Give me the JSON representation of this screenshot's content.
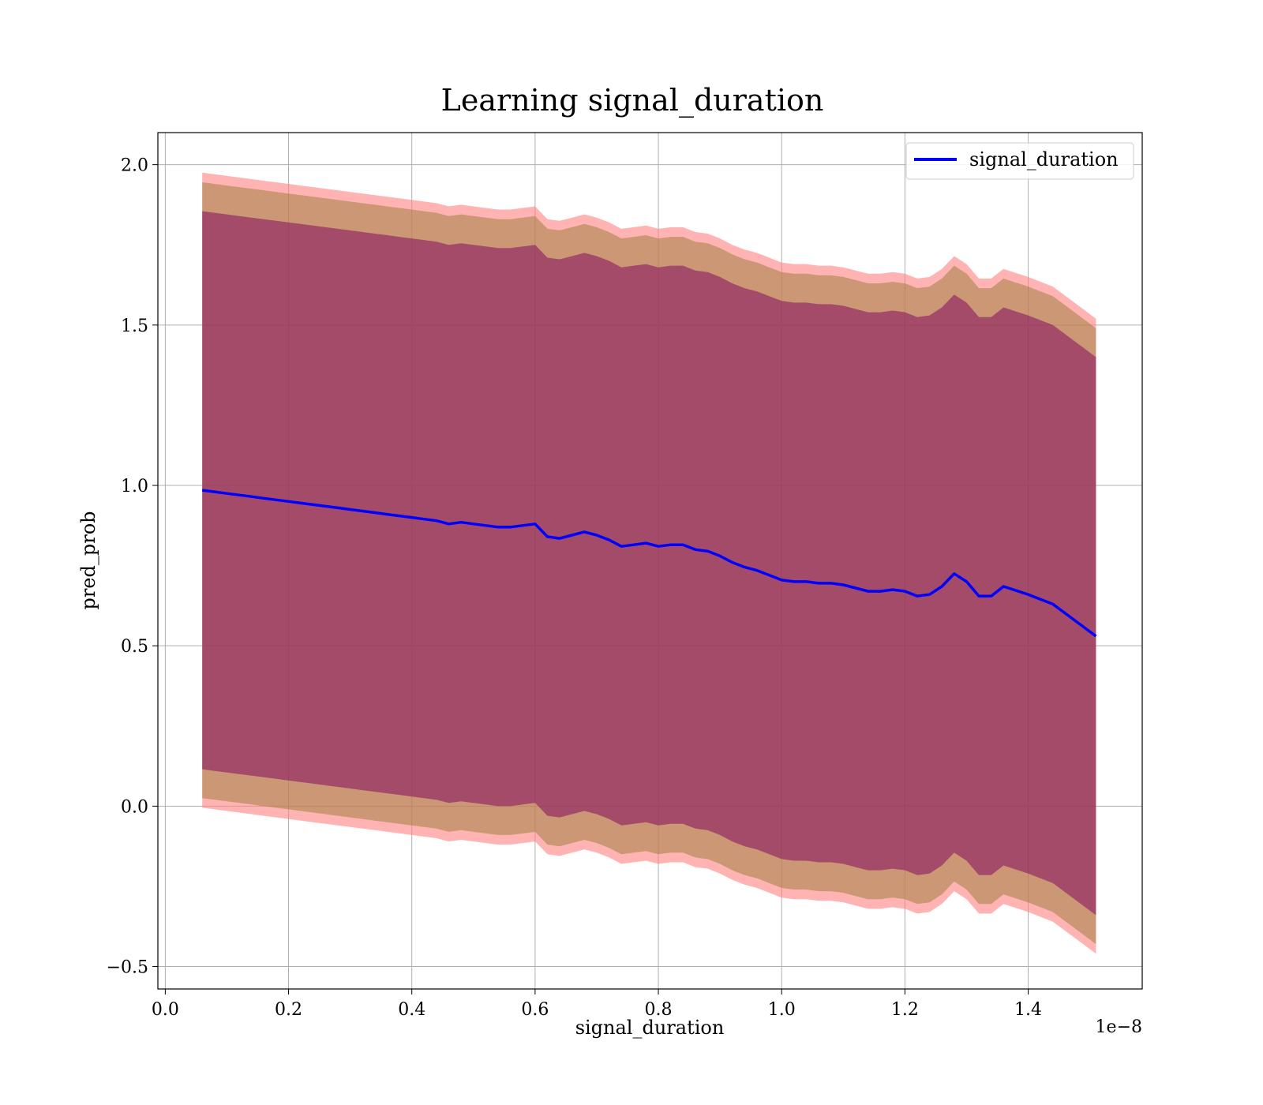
{
  "chart_data": {
    "type": "line",
    "title": "Learning signal_duration",
    "xlabel": "signal_duration",
    "ylabel": "pred_prob",
    "x_offset_label": "1e−8",
    "xlim": [
      -0.012,
      1.585
    ],
    "ylim": [
      -0.57,
      2.1
    ],
    "xticks": [
      0.0,
      0.2,
      0.4,
      0.6,
      0.8,
      1.0,
      1.2,
      1.4
    ],
    "xtick_labels": [
      "0.0",
      "0.2",
      "0.4",
      "0.6",
      "0.8",
      "1.0",
      "1.2",
      "1.4"
    ],
    "yticks": [
      -0.5,
      0.0,
      0.5,
      1.0,
      1.5,
      2.0
    ],
    "ytick_labels": [
      "−0.5",
      "0.0",
      "0.5",
      "1.0",
      "1.5",
      "2.0"
    ],
    "grid": true,
    "legend": {
      "position": "top-right",
      "entries": [
        "signal_duration"
      ]
    },
    "series": [
      {
        "name": "signal_duration",
        "color": "#0000ff",
        "x": [
          0.06,
          0.08,
          0.1,
          0.12,
          0.14,
          0.16,
          0.18,
          0.2,
          0.22,
          0.24,
          0.26,
          0.28,
          0.3,
          0.32,
          0.34,
          0.36,
          0.38,
          0.4,
          0.42,
          0.44,
          0.46,
          0.48,
          0.5,
          0.52,
          0.54,
          0.56,
          0.58,
          0.6,
          0.62,
          0.64,
          0.66,
          0.68,
          0.7,
          0.72,
          0.74,
          0.76,
          0.78,
          0.8,
          0.82,
          0.84,
          0.86,
          0.88,
          0.9,
          0.92,
          0.94,
          0.96,
          0.98,
          1.0,
          1.02,
          1.04,
          1.06,
          1.08,
          1.1,
          1.12,
          1.14,
          1.16,
          1.18,
          1.2,
          1.22,
          1.24,
          1.26,
          1.28,
          1.3,
          1.32,
          1.34,
          1.36,
          1.4,
          1.44,
          1.51
        ],
        "y": [
          0.985,
          0.98,
          0.975,
          0.97,
          0.965,
          0.96,
          0.955,
          0.95,
          0.945,
          0.94,
          0.935,
          0.93,
          0.925,
          0.92,
          0.915,
          0.91,
          0.905,
          0.9,
          0.895,
          0.89,
          0.88,
          0.885,
          0.88,
          0.875,
          0.87,
          0.87,
          0.875,
          0.88,
          0.84,
          0.835,
          0.845,
          0.855,
          0.845,
          0.83,
          0.81,
          0.815,
          0.82,
          0.81,
          0.815,
          0.815,
          0.8,
          0.795,
          0.78,
          0.76,
          0.745,
          0.735,
          0.72,
          0.705,
          0.7,
          0.7,
          0.695,
          0.695,
          0.69,
          0.68,
          0.67,
          0.67,
          0.675,
          0.67,
          0.655,
          0.66,
          0.685,
          0.725,
          0.7,
          0.655,
          0.655,
          0.685,
          0.66,
          0.63,
          0.53
        ]
      }
    ],
    "bands": [
      {
        "color": "#ff8080",
        "opacity": 0.6,
        "lower": [
          -0.005,
          -0.01,
          -0.015,
          -0.02,
          -0.025,
          -0.03,
          -0.035,
          -0.04,
          -0.045,
          -0.05,
          -0.055,
          -0.06,
          -0.065,
          -0.07,
          -0.075,
          -0.08,
          -0.085,
          -0.09,
          -0.095,
          -0.1,
          -0.11,
          -0.105,
          -0.11,
          -0.115,
          -0.12,
          -0.12,
          -0.115,
          -0.11,
          -0.15,
          -0.155,
          -0.145,
          -0.135,
          -0.145,
          -0.16,
          -0.18,
          -0.175,
          -0.17,
          -0.18,
          -0.175,
          -0.175,
          -0.19,
          -0.195,
          -0.21,
          -0.23,
          -0.245,
          -0.255,
          -0.27,
          -0.285,
          -0.29,
          -0.29,
          -0.295,
          -0.295,
          -0.3,
          -0.31,
          -0.32,
          -0.32,
          -0.315,
          -0.32,
          -0.335,
          -0.33,
          -0.305,
          -0.265,
          -0.29,
          -0.335,
          -0.335,
          -0.305,
          -0.33,
          -0.36,
          -0.46
        ],
        "upper": [
          1.975,
          1.97,
          1.965,
          1.96,
          1.955,
          1.95,
          1.945,
          1.94,
          1.935,
          1.93,
          1.925,
          1.92,
          1.915,
          1.91,
          1.905,
          1.9,
          1.895,
          1.89,
          1.885,
          1.88,
          1.87,
          1.875,
          1.87,
          1.865,
          1.86,
          1.86,
          1.865,
          1.87,
          1.83,
          1.825,
          1.835,
          1.845,
          1.835,
          1.82,
          1.8,
          1.805,
          1.81,
          1.8,
          1.805,
          1.805,
          1.79,
          1.785,
          1.77,
          1.75,
          1.735,
          1.725,
          1.71,
          1.695,
          1.69,
          1.69,
          1.685,
          1.685,
          1.68,
          1.67,
          1.66,
          1.66,
          1.665,
          1.66,
          1.645,
          1.65,
          1.675,
          1.715,
          1.69,
          1.645,
          1.645,
          1.675,
          1.65,
          1.62,
          1.52
        ]
      },
      {
        "color": "#a08040",
        "opacity": 0.55,
        "lower": [
          0.025,
          0.02,
          0.015,
          0.01,
          0.005,
          0.0,
          -0.005,
          -0.01,
          -0.015,
          -0.02,
          -0.025,
          -0.03,
          -0.035,
          -0.04,
          -0.045,
          -0.05,
          -0.055,
          -0.06,
          -0.065,
          -0.07,
          -0.08,
          -0.075,
          -0.08,
          -0.085,
          -0.09,
          -0.09,
          -0.085,
          -0.08,
          -0.12,
          -0.125,
          -0.115,
          -0.105,
          -0.115,
          -0.13,
          -0.15,
          -0.145,
          -0.14,
          -0.15,
          -0.145,
          -0.145,
          -0.16,
          -0.165,
          -0.18,
          -0.2,
          -0.215,
          -0.225,
          -0.24,
          -0.255,
          -0.26,
          -0.26,
          -0.265,
          -0.265,
          -0.27,
          -0.28,
          -0.29,
          -0.29,
          -0.285,
          -0.29,
          -0.305,
          -0.3,
          -0.275,
          -0.235,
          -0.26,
          -0.305,
          -0.305,
          -0.275,
          -0.3,
          -0.33,
          -0.43
        ],
        "upper": [
          1.945,
          1.94,
          1.935,
          1.93,
          1.925,
          1.92,
          1.915,
          1.91,
          1.905,
          1.9,
          1.895,
          1.89,
          1.885,
          1.88,
          1.875,
          1.87,
          1.865,
          1.86,
          1.855,
          1.85,
          1.84,
          1.845,
          1.84,
          1.835,
          1.83,
          1.83,
          1.835,
          1.84,
          1.8,
          1.795,
          1.805,
          1.815,
          1.805,
          1.79,
          1.77,
          1.775,
          1.78,
          1.77,
          1.775,
          1.775,
          1.76,
          1.755,
          1.74,
          1.72,
          1.705,
          1.695,
          1.68,
          1.665,
          1.66,
          1.66,
          1.655,
          1.655,
          1.65,
          1.64,
          1.63,
          1.63,
          1.635,
          1.63,
          1.615,
          1.62,
          1.645,
          1.685,
          1.66,
          1.615,
          1.615,
          1.645,
          1.62,
          1.59,
          1.49
        ]
      },
      {
        "color": "#800060",
        "opacity": 0.5,
        "lower": [
          0.115,
          0.11,
          0.105,
          0.1,
          0.095,
          0.09,
          0.085,
          0.08,
          0.075,
          0.07,
          0.065,
          0.06,
          0.055,
          0.05,
          0.045,
          0.04,
          0.035,
          0.03,
          0.025,
          0.02,
          0.01,
          0.015,
          0.01,
          0.005,
          0.0,
          0.0,
          0.005,
          0.01,
          -0.03,
          -0.035,
          -0.025,
          -0.015,
          -0.025,
          -0.04,
          -0.06,
          -0.055,
          -0.05,
          -0.06,
          -0.055,
          -0.055,
          -0.07,
          -0.075,
          -0.09,
          -0.11,
          -0.125,
          -0.135,
          -0.15,
          -0.165,
          -0.17,
          -0.17,
          -0.175,
          -0.175,
          -0.18,
          -0.19,
          -0.2,
          -0.2,
          -0.195,
          -0.2,
          -0.215,
          -0.21,
          -0.185,
          -0.145,
          -0.17,
          -0.215,
          -0.215,
          -0.185,
          -0.21,
          -0.24,
          -0.34
        ],
        "upper": [
          1.855,
          1.85,
          1.845,
          1.84,
          1.835,
          1.83,
          1.825,
          1.82,
          1.815,
          1.81,
          1.805,
          1.8,
          1.795,
          1.79,
          1.785,
          1.78,
          1.775,
          1.77,
          1.765,
          1.76,
          1.75,
          1.755,
          1.75,
          1.745,
          1.74,
          1.74,
          1.745,
          1.75,
          1.71,
          1.705,
          1.715,
          1.725,
          1.715,
          1.7,
          1.68,
          1.685,
          1.69,
          1.68,
          1.685,
          1.685,
          1.67,
          1.665,
          1.65,
          1.63,
          1.615,
          1.605,
          1.59,
          1.575,
          1.57,
          1.57,
          1.565,
          1.565,
          1.56,
          1.55,
          1.54,
          1.54,
          1.545,
          1.54,
          1.525,
          1.53,
          1.555,
          1.595,
          1.57,
          1.525,
          1.525,
          1.555,
          1.53,
          1.5,
          1.4
        ]
      }
    ]
  }
}
